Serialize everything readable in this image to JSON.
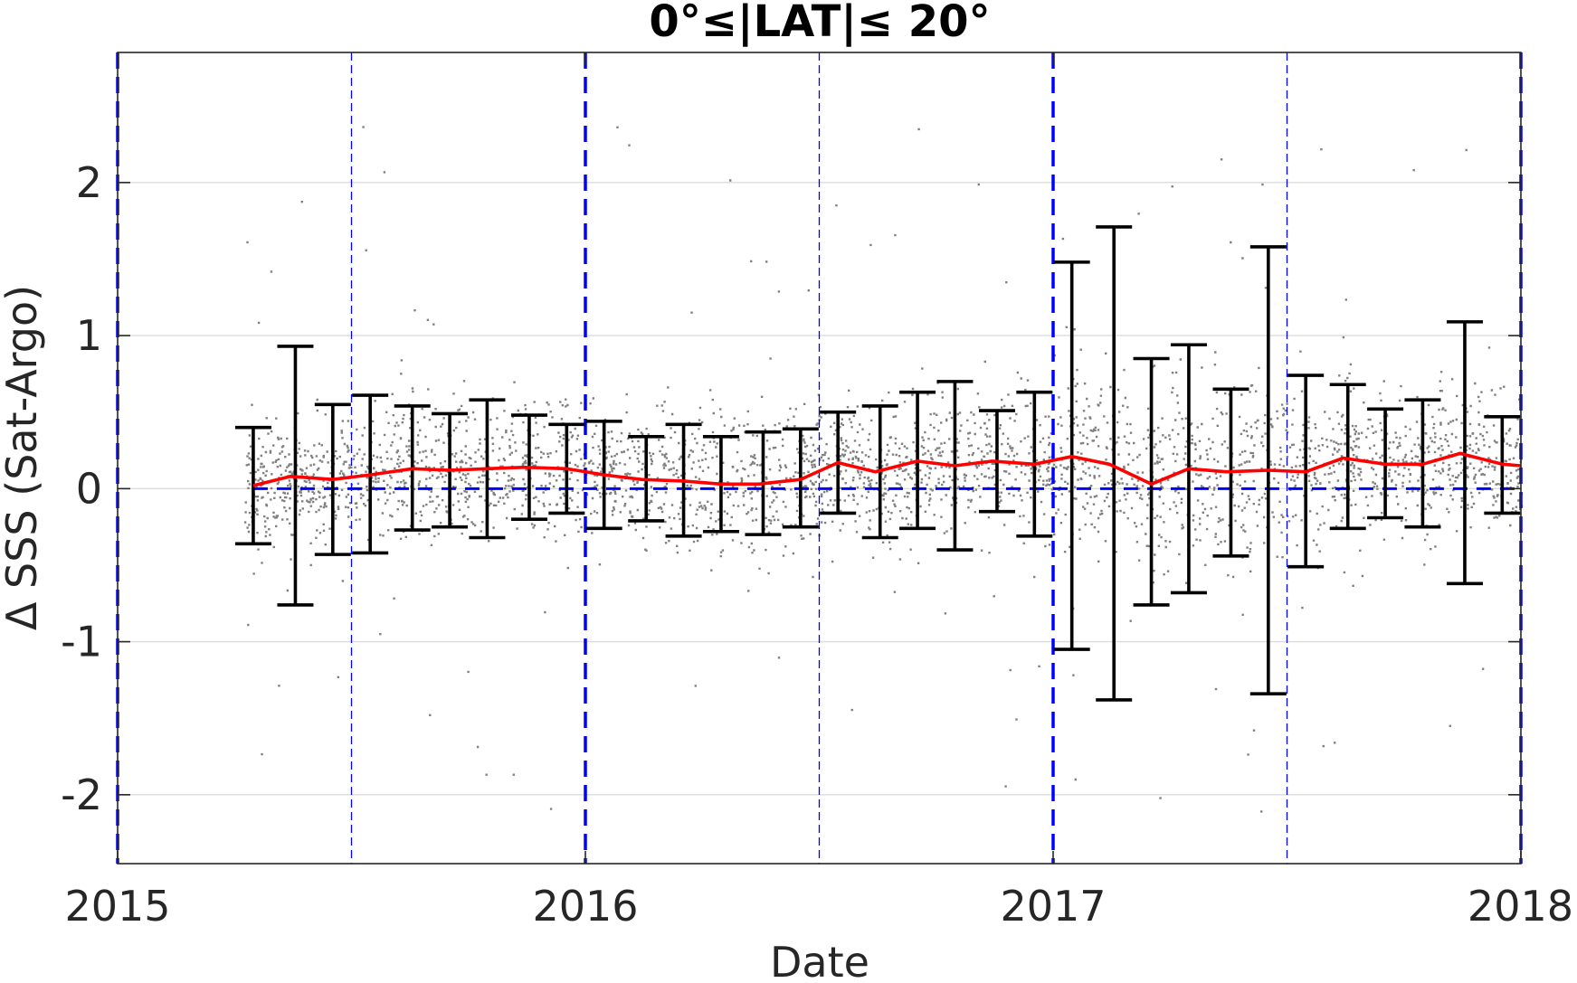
{
  "chart_data": {
    "type": "scatter",
    "title": "0°≤|LAT|≤ 20°",
    "xlabel": "Date",
    "ylabel": "Δ SSS (Sat-Argo)",
    "xlim": [
      2015.0,
      2018.0
    ],
    "ylim": [
      -2.45,
      2.85
    ],
    "xticks": [
      "2015",
      "2016",
      "2017",
      "2018"
    ],
    "xtick_values": [
      2015.0,
      2016.0,
      2017.0,
      2018.0
    ],
    "yticks": [
      "-2",
      "-1",
      "0",
      "1",
      "2"
    ],
    "ytick_values": [
      -2,
      -1,
      0,
      1,
      2
    ],
    "grid": "horizontal",
    "colors": {
      "scatter": "#808080",
      "mean": "#ff0000",
      "errorbar": "#000000",
      "reference": "#0000ff",
      "grid": "#dcdcdc"
    },
    "reference_line_y": 0,
    "year_lines": [
      2015.0,
      2016.0,
      2017.0,
      2018.0
    ],
    "halfyear_lines": [
      2015.5,
      2016.5,
      2017.5
    ],
    "series": [
      {
        "type": "line",
        "x": [
          2015.29,
          2015.37,
          2015.46,
          2015.54,
          2015.63,
          2015.71,
          2015.79,
          2015.87,
          2015.96,
          2016.04,
          2016.12,
          2016.21,
          2016.29,
          2016.37,
          2016.46,
          2016.54,
          2016.62,
          2016.71,
          2016.79,
          2016.87,
          2016.96,
          2017.04,
          2017.12,
          2017.21,
          2017.29,
          2017.37,
          2017.46,
          2017.54,
          2017.62,
          2017.71,
          2017.79,
          2017.87,
          2017.96,
          2018.0
        ],
        "y": [
          0.02,
          0.08,
          0.06,
          0.09,
          0.13,
          0.12,
          0.13,
          0.14,
          0.13,
          0.09,
          0.06,
          0.05,
          0.03,
          0.03,
          0.06,
          0.17,
          0.11,
          0.18,
          0.15,
          0.18,
          0.16,
          0.21,
          0.16,
          0.03,
          0.13,
          0.11,
          0.12,
          0.11,
          0.2,
          0.16,
          0.16,
          0.23,
          0.16,
          0.15
        ]
      },
      {
        "type": "errorbar",
        "x": [
          2015.29,
          2015.38,
          2015.46,
          2015.54,
          2015.63,
          2015.71,
          2015.79,
          2015.88,
          2015.96,
          2016.04,
          2016.13,
          2016.21,
          2016.29,
          2016.38,
          2016.46,
          2016.54,
          2016.63,
          2016.71,
          2016.79,
          2016.88,
          2016.96,
          2017.04,
          2017.13,
          2017.21,
          2017.29,
          2017.38,
          2017.46,
          2017.54,
          2017.63,
          2017.71,
          2017.79,
          2017.88,
          2017.96
        ],
        "low": [
          -0.36,
          -0.76,
          -0.43,
          -0.42,
          -0.27,
          -0.25,
          -0.32,
          -0.2,
          -0.16,
          -0.26,
          -0.21,
          -0.31,
          -0.28,
          -0.3,
          -0.25,
          -0.16,
          -0.32,
          -0.26,
          -0.4,
          -0.15,
          -0.31,
          -1.05,
          -1.38,
          -0.76,
          -0.68,
          -0.44,
          -1.34,
          -0.51,
          -0.26,
          -0.19,
          -0.25,
          -0.62,
          -0.16
        ],
        "high": [
          0.4,
          0.93,
          0.55,
          0.61,
          0.54,
          0.49,
          0.58,
          0.48,
          0.42,
          0.44,
          0.34,
          0.42,
          0.34,
          0.37,
          0.39,
          0.5,
          0.54,
          0.63,
          0.7,
          0.51,
          0.63,
          1.48,
          1.71,
          0.85,
          0.94,
          0.65,
          1.58,
          0.74,
          0.68,
          0.52,
          0.58,
          1.09,
          0.47
        ]
      }
    ],
    "scatter_points": "approximately 9000 individual match-up differences spread around the monthly means, mostly within ±0.8, with sparse outliers up to ±2.5"
  }
}
